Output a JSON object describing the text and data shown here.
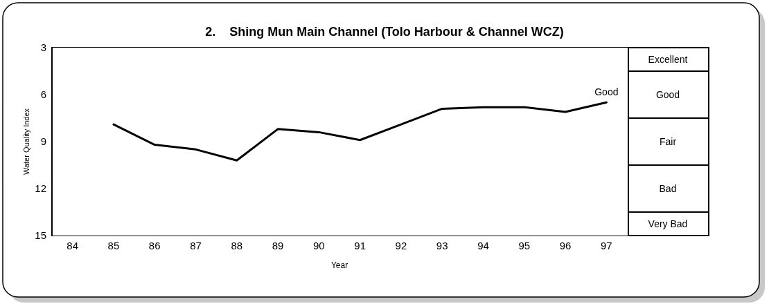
{
  "chart_data": {
    "type": "line",
    "title": "2.    Shing Mun Main Channel (Tolo Harbour & Channel WCZ)",
    "xlabel": "Year",
    "ylabel": "Water Quality Index",
    "x": [
      85,
      86,
      87,
      88,
      89,
      90,
      91,
      92,
      93,
      94,
      95,
      96,
      97
    ],
    "series": [
      {
        "color": "#000000",
        "values": [
          7.9,
          9.2,
          9.5,
          10.2,
          8.2,
          8.4,
          8.9,
          7.9,
          6.9,
          6.8,
          6.8,
          7.1,
          6.5
        ]
      }
    ],
    "xlim": [
      83.5,
      97.5
    ],
    "xticks": [
      84,
      85,
      86,
      87,
      88,
      89,
      90,
      91,
      92,
      93,
      94,
      95,
      96,
      97
    ],
    "ylim": [
      15,
      3
    ],
    "yticks": [
      3,
      6,
      9,
      12,
      15
    ],
    "bands": [
      {
        "axis": "y",
        "from": 3,
        "to": 4.5,
        "label": "Excellent"
      },
      {
        "axis": "y",
        "from": 4.5,
        "to": 7.5,
        "label": "Good"
      },
      {
        "axis": "y",
        "from": 7.5,
        "to": 10.5,
        "label": "Fair"
      },
      {
        "axis": "y",
        "from": 10.5,
        "to": 13.5,
        "label": "Bad"
      },
      {
        "axis": "y",
        "from": 13.5,
        "to": 15,
        "label": "Very Bad"
      }
    ],
    "annotations": [
      {
        "text": "Good",
        "x": 97,
        "y": 6.5
      }
    ],
    "marker": "none",
    "line_style": "solid"
  }
}
